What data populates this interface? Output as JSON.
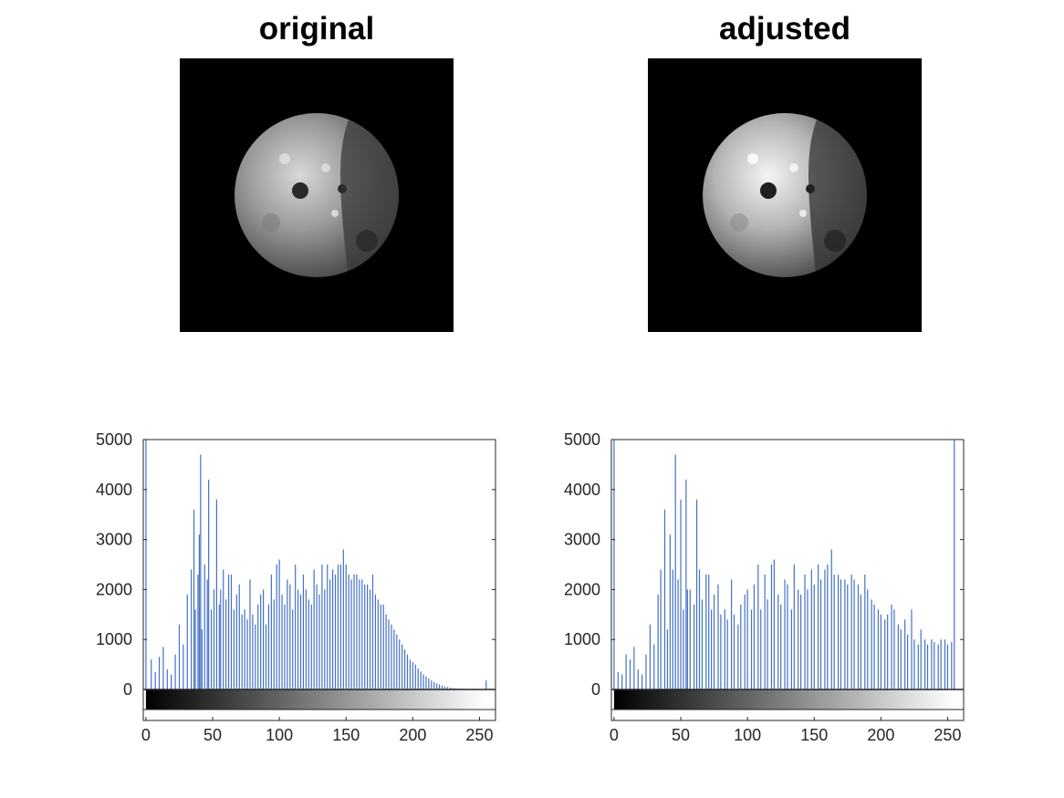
{
  "panels": {
    "original": {
      "title": "original"
    },
    "adjusted": {
      "title": "adjusted"
    }
  },
  "colors": {
    "bar": "#4472c4",
    "axis": "#262626",
    "image_bg": "#000000"
  },
  "chart_data": [
    {
      "type": "bar",
      "name": "original-histogram",
      "xlim": [
        -2,
        262
      ],
      "ylim": [
        0,
        5000
      ],
      "xticks": [
        0,
        50,
        100,
        150,
        200,
        250
      ],
      "yticks": [
        0,
        1000,
        2000,
        3000,
        4000,
        5000
      ],
      "colorbar": "grayscale 0-255",
      "x": [
        0,
        4,
        7,
        10,
        13,
        16,
        19,
        22,
        25,
        28,
        31,
        34,
        36,
        37,
        39,
        40,
        41,
        42,
        44,
        46,
        47,
        49,
        51,
        53,
        55,
        56,
        58,
        60,
        62,
        64,
        66,
        68,
        70,
        72,
        74,
        76,
        78,
        80,
        82,
        84,
        86,
        88,
        90,
        92,
        94,
        96,
        98,
        100,
        102,
        104,
        106,
        108,
        110,
        112,
        114,
        116,
        118,
        120,
        122,
        124,
        126,
        128,
        130,
        132,
        134,
        136,
        138,
        140,
        142,
        144,
        146,
        148,
        150,
        152,
        154,
        156,
        158,
        160,
        162,
        164,
        166,
        168,
        170,
        172,
        174,
        176,
        178,
        180,
        182,
        184,
        186,
        188,
        190,
        192,
        194,
        196,
        198,
        200,
        202,
        204,
        206,
        208,
        210,
        212,
        214,
        216,
        218,
        220,
        222,
        224,
        226,
        228,
        230,
        232,
        234,
        236,
        238,
        240,
        242,
        244,
        246,
        248,
        250,
        252,
        255
      ],
      "values": [
        5000,
        600,
        350,
        650,
        850,
        400,
        300,
        700,
        1300,
        900,
        1900,
        2400,
        3600,
        1600,
        2300,
        3100,
        4700,
        1200,
        2500,
        2200,
        4200,
        1600,
        2000,
        3800,
        1700,
        2000,
        2400,
        1800,
        2300,
        2300,
        1600,
        1900,
        2100,
        1500,
        1600,
        1400,
        2200,
        1500,
        1300,
        1700,
        1900,
        2000,
        1300,
        1700,
        2300,
        1800,
        2500,
        2600,
        1900,
        1700,
        2200,
        2100,
        1600,
        2500,
        2000,
        1900,
        2300,
        2000,
        1800,
        1700,
        2400,
        2100,
        1900,
        2500,
        2000,
        2500,
        2200,
        2400,
        2300,
        2500,
        2500,
        2800,
        2500,
        2300,
        2200,
        2300,
        2300,
        2200,
        2200,
        2100,
        2100,
        2000,
        2300,
        1900,
        1800,
        1700,
        1700,
        1500,
        1400,
        1300,
        1200,
        1100,
        1000,
        900,
        800,
        700,
        600,
        550,
        500,
        420,
        360,
        300,
        260,
        220,
        180,
        150,
        120,
        100,
        80,
        60,
        50,
        40,
        30,
        25,
        20,
        15,
        12,
        10,
        8,
        6,
        5,
        4,
        3,
        2,
        180
      ]
    },
    {
      "type": "bar",
      "name": "adjusted-histogram",
      "xlim": [
        -2,
        262
      ],
      "ylim": [
        0,
        5000
      ],
      "xticks": [
        0,
        50,
        100,
        150,
        200,
        250
      ],
      "yticks": [
        0,
        1000,
        2000,
        3000,
        4000,
        5000
      ],
      "colorbar": "grayscale 0-255",
      "x": [
        0,
        3,
        6,
        9,
        12,
        15,
        18,
        21,
        24,
        27,
        30,
        33,
        35,
        38,
        40,
        42,
        44,
        46,
        48,
        50,
        52,
        54,
        55,
        57,
        60,
        62,
        64,
        66,
        69,
        71,
        73,
        75,
        78,
        80,
        83,
        85,
        88,
        90,
        93,
        95,
        98,
        100,
        103,
        105,
        108,
        110,
        113,
        115,
        118,
        120,
        123,
        125,
        128,
        130,
        133,
        135,
        138,
        140,
        143,
        145,
        148,
        150,
        153,
        155,
        158,
        160,
        163,
        165,
        168,
        170,
        173,
        175,
        178,
        180,
        183,
        185,
        188,
        190,
        193,
        195,
        198,
        200,
        203,
        205,
        208,
        210,
        213,
        215,
        218,
        220,
        223,
        225,
        228,
        230,
        233,
        235,
        238,
        240,
        243,
        245,
        248,
        250,
        253,
        255
      ],
      "values": [
        5000,
        350,
        300,
        700,
        600,
        850,
        400,
        300,
        700,
        1300,
        900,
        1900,
        2400,
        3600,
        1200,
        3100,
        2400,
        4700,
        2200,
        3800,
        1600,
        4200,
        2000,
        2000,
        1700,
        3800,
        2400,
        1800,
        2300,
        2300,
        1600,
        1900,
        2100,
        1500,
        1600,
        1400,
        2200,
        1500,
        1300,
        1700,
        1900,
        2000,
        1600,
        2100,
        2500,
        1600,
        2300,
        1800,
        2500,
        2600,
        1900,
        1700,
        2200,
        2100,
        1600,
        2500,
        2000,
        1900,
        2300,
        2000,
        2400,
        2100,
        2500,
        2200,
        2400,
        2500,
        2800,
        2300,
        2300,
        2200,
        2200,
        2100,
        2300,
        2200,
        2100,
        1900,
        2300,
        2000,
        1800,
        1700,
        1600,
        1500,
        1400,
        1500,
        1700,
        1600,
        1300,
        1200,
        1400,
        1100,
        1600,
        1000,
        900,
        1200,
        1000,
        900,
        1000,
        950,
        900,
        1000,
        1000,
        900,
        950,
        5000
      ]
    }
  ]
}
